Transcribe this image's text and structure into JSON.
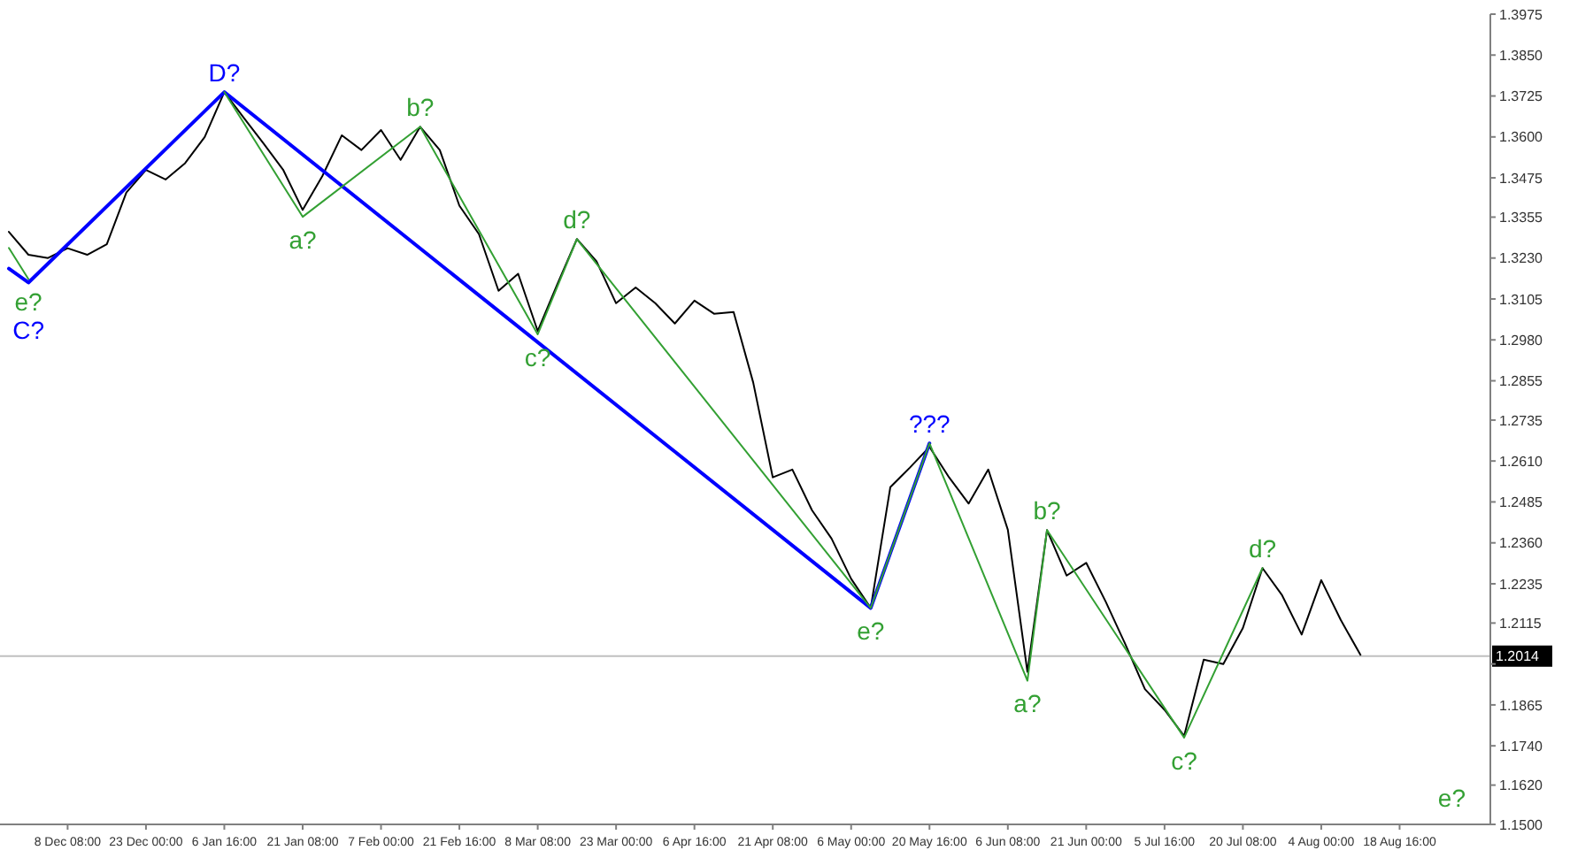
{
  "chart_data": {
    "type": "line",
    "grid": false,
    "marker": "none",
    "line_style": "solid",
    "categories": [
      null,
      null,
      null,
      "8 Dec 08:00",
      null,
      null,
      null,
      "23 Dec 00:00",
      null,
      null,
      null,
      "6 Jan 16:00",
      null,
      null,
      null,
      "21 Jan 08:00",
      null,
      null,
      null,
      "7 Feb 00:00",
      null,
      null,
      null,
      "21 Feb 16:00",
      null,
      null,
      null,
      "8 Mar 08:00",
      null,
      null,
      null,
      "23 Mar 00:00",
      null,
      null,
      null,
      "6 Apr 16:00",
      null,
      null,
      null,
      "21 Apr 08:00",
      null,
      null,
      null,
      "6 May 00:00",
      null,
      null,
      null,
      "20 May 16:00",
      null,
      null,
      null,
      "6 Jun 08:00",
      null,
      null,
      null,
      "21 Jun 00:00",
      null,
      null,
      null,
      "5 Jul 16:00",
      null,
      null,
      null,
      "20 Jul 08:00",
      null,
      null,
      null,
      "4 Aug 00:00",
      null,
      null,
      null,
      "18 Aug 16:00",
      null,
      null,
      null,
      null
    ],
    "ylim": [
      1.15,
      1.3975
    ],
    "yticks": [
      {
        "value": 1.3975,
        "label": "1.3975"
      },
      {
        "value": 1.385,
        "label": "1.3850"
      },
      {
        "value": 1.3725,
        "label": "1.3725"
      },
      {
        "value": 1.36,
        "label": "1.3600"
      },
      {
        "value": 1.3475,
        "label": "1.3475"
      },
      {
        "value": 1.3355,
        "label": "1.3355"
      },
      {
        "value": 1.323,
        "label": "1.3230"
      },
      {
        "value": 1.3105,
        "label": "1.3105"
      },
      {
        "value": 1.298,
        "label": "1.2980"
      },
      {
        "value": 1.2855,
        "label": "1.2855"
      },
      {
        "value": 1.2735,
        "label": "1.2735"
      },
      {
        "value": 1.261,
        "label": "1.2610"
      },
      {
        "value": 1.2485,
        "label": "1.2485"
      },
      {
        "value": 1.236,
        "label": "1.2360"
      },
      {
        "value": 1.2235,
        "label": "1.2235"
      },
      {
        "value": 1.2115,
        "label": "1.2115"
      },
      {
        "value": 1.199,
        "label": null
      },
      {
        "value": 1.1865,
        "label": "1.1865"
      },
      {
        "value": 1.174,
        "label": "1.1740"
      },
      {
        "value": 1.162,
        "label": "1.1620"
      },
      {
        "value": 1.15,
        "label": "1.1500"
      }
    ],
    "ref_lines": [
      {
        "axis": "y",
        "value": 1.2014,
        "label": "1.2014",
        "color": "#c0c0c0"
      }
    ],
    "series": [
      {
        "color": "#000000",
        "values": [
          1.331,
          1.324,
          1.323,
          1.326,
          1.324,
          1.3272,
          1.343,
          1.3499,
          1.347,
          1.352,
          1.36,
          1.3737,
          1.3658,
          1.358,
          1.35,
          1.3377,
          1.348,
          1.3605,
          1.356,
          1.3621,
          1.353,
          1.3631,
          1.356,
          1.339,
          1.3303,
          1.313,
          1.3182,
          1.3007,
          1.315,
          1.3288,
          1.322,
          1.3092,
          1.314,
          1.3092,
          1.303,
          1.31,
          1.306,
          1.3065,
          1.285,
          1.256,
          1.2584,
          1.246,
          1.2373,
          1.225,
          1.2161,
          1.253,
          1.259,
          1.2653,
          1.256,
          1.248,
          1.2584,
          1.24,
          1.1966,
          1.2399,
          1.226,
          1.2299,
          1.218,
          1.205,
          1.1913,
          1.185,
          1.177,
          1.2003,
          1.199,
          1.21,
          1.2283,
          1.22,
          1.208,
          1.2246,
          1.2124,
          1.2018,
          null,
          null,
          null,
          null,
          null,
          null
        ]
      },
      {
        "color": "#33a033",
        "values": [
          1.3261,
          1.3166,
          null,
          null,
          null,
          null,
          null,
          null,
          null,
          null,
          null,
          null,
          null,
          null,
          null,
          null,
          null,
          null,
          null,
          null,
          null,
          null,
          null,
          null,
          null,
          null,
          null,
          null,
          null,
          null,
          null,
          null,
          null,
          null,
          null,
          null,
          null,
          null,
          null,
          null,
          null,
          null,
          null,
          null,
          null,
          null,
          null,
          null,
          null,
          null,
          null,
          null,
          null,
          null,
          null,
          null,
          null,
          null,
          null,
          null,
          null,
          null,
          null,
          null,
          null,
          null,
          null,
          null,
          null,
          null,
          null,
          null,
          null,
          null,
          null,
          null
        ],
        "value_labels": [
          null,
          "e?",
          null,
          null,
          null,
          null,
          null,
          null,
          null,
          null,
          null,
          null,
          null,
          null,
          null,
          null,
          null,
          null,
          null,
          null,
          null,
          null,
          null,
          null,
          null,
          null,
          null,
          null,
          null,
          null,
          null,
          null,
          null,
          null,
          null,
          null,
          null,
          null,
          null,
          null,
          null,
          null,
          null,
          null,
          null,
          null,
          null,
          null,
          null,
          null,
          null,
          null,
          null,
          null,
          null,
          null,
          null,
          null,
          null,
          null,
          null,
          null,
          null,
          null,
          null,
          null,
          null,
          null,
          null,
          null,
          null,
          null,
          null,
          null,
          null,
          null
        ]
      },
      {
        "color": "#0000ff",
        "values": [
          1.3198,
          1.3155,
          null,
          null,
          null,
          null,
          null,
          null,
          null,
          null,
          null,
          1.3737,
          null,
          null,
          null,
          null,
          null,
          null,
          null,
          null,
          null,
          null,
          null,
          null,
          null,
          null,
          null,
          null,
          null,
          null,
          null,
          null,
          null,
          null,
          null,
          null,
          null,
          null,
          null,
          null,
          null,
          null,
          null,
          null,
          1.2161,
          null,
          null,
          1.2664,
          null,
          null,
          null,
          null,
          null,
          null,
          null,
          null,
          null,
          null,
          null,
          null,
          null,
          null,
          null,
          null,
          null,
          null,
          null,
          null,
          null,
          null,
          null,
          null,
          null,
          null,
          null,
          null
        ],
        "value_labels": [
          null,
          "C?",
          null,
          null,
          null,
          null,
          null,
          null,
          null,
          null,
          null,
          "D?",
          null,
          null,
          null,
          null,
          null,
          null,
          null,
          null,
          null,
          null,
          null,
          null,
          null,
          null,
          null,
          null,
          null,
          null,
          null,
          null,
          null,
          null,
          null,
          null,
          null,
          null,
          null,
          null,
          null,
          null,
          null,
          null,
          null,
          null,
          null,
          "???",
          null,
          null,
          null,
          null,
          null,
          null,
          null,
          null,
          null,
          null,
          null,
          null,
          null,
          null,
          null,
          null,
          null,
          null,
          null,
          null,
          null,
          null,
          null,
          null,
          null,
          null,
          null,
          null
        ]
      },
      {
        "color": "#33a033",
        "values": [
          null,
          null,
          null,
          null,
          null,
          null,
          null,
          null,
          null,
          null,
          null,
          1.3737,
          null,
          null,
          null,
          1.3356,
          null,
          null,
          null,
          null,
          null,
          1.3631,
          null,
          null,
          null,
          null,
          null,
          1.2997,
          null,
          1.3288,
          null,
          null,
          null,
          null,
          null,
          null,
          null,
          null,
          null,
          null,
          null,
          null,
          null,
          null,
          1.2161,
          null,
          null,
          1.2664,
          null,
          null,
          null,
          null,
          1.1939,
          1.2399,
          null,
          null,
          null,
          null,
          null,
          null,
          1.1765,
          null,
          null,
          null,
          1.2283,
          null,
          null,
          null,
          null,
          null,
          null,
          null,
          null,
          null,
          null,
          null
        ],
        "value_labels": [
          null,
          null,
          null,
          null,
          null,
          null,
          null,
          null,
          null,
          null,
          null,
          null,
          null,
          null,
          null,
          "a?",
          null,
          null,
          null,
          null,
          null,
          "b?",
          null,
          null,
          null,
          null,
          null,
          "c?",
          null,
          "d?",
          null,
          null,
          null,
          null,
          null,
          null,
          null,
          null,
          null,
          null,
          null,
          null,
          null,
          null,
          "e?",
          null,
          null,
          null,
          null,
          null,
          null,
          null,
          "a?",
          "b?",
          null,
          null,
          null,
          null,
          null,
          null,
          "c?",
          null,
          null,
          null,
          "d?",
          null,
          null,
          null,
          null,
          null,
          null,
          null,
          null,
          null,
          null,
          null
        ]
      }
    ],
    "annotations": [
      "e?"
    ]
  }
}
